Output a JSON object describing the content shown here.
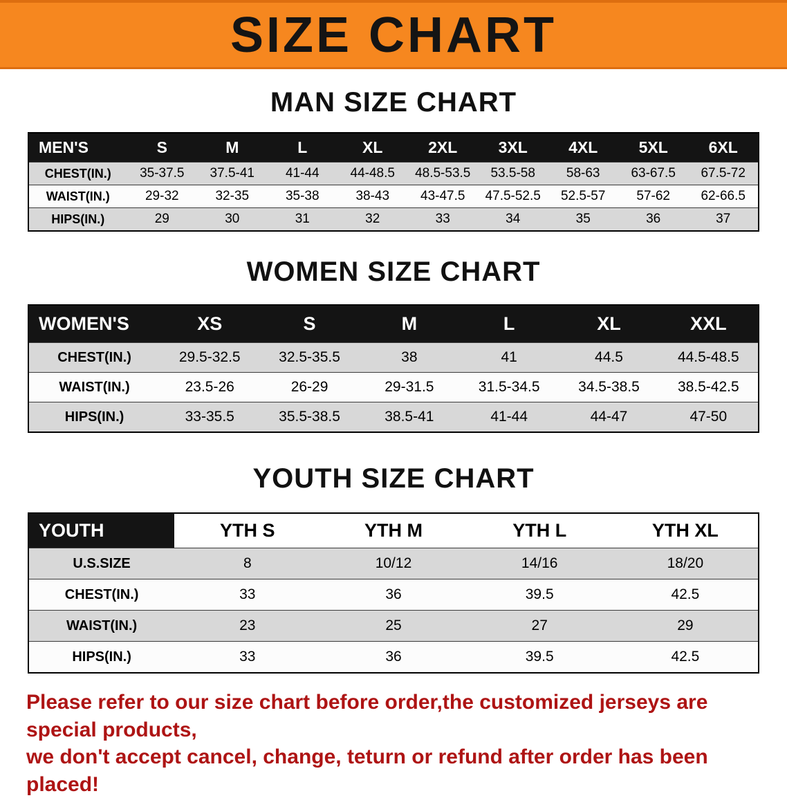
{
  "banner": {
    "title": "SIZE CHART",
    "bg_color": "#F6871F",
    "text_color": "#141414"
  },
  "sections": [
    {
      "heading": "MAN SIZE CHART",
      "table": {
        "header": [
          "MEN'S",
          "S",
          "M",
          "L",
          "XL",
          "2XL",
          "3XL",
          "4XL",
          "5XL",
          "6XL"
        ],
        "rows": [
          {
            "label": "CHEST(IN.)",
            "values": [
              "35-37.5",
              "37.5-41",
              "41-44",
              "44-48.5",
              "48.5-53.5",
              "53.5-58",
              "58-63",
              "63-67.5",
              "67.5-72"
            ]
          },
          {
            "label": "WAIST(IN.)",
            "values": [
              "29-32",
              "32-35",
              "35-38",
              "38-43",
              "43-47.5",
              "47.5-52.5",
              "52.5-57",
              "57-62",
              "62-66.5"
            ]
          },
          {
            "label": "HIPS(IN.)",
            "values": [
              "29",
              "30",
              "31",
              "32",
              "33",
              "34",
              "35",
              "36",
              "37"
            ]
          }
        ]
      }
    },
    {
      "heading": "WOMEN SIZE CHART",
      "table": {
        "header": [
          "WOMEN'S",
          "XS",
          "S",
          "M",
          "L",
          "XL",
          "XXL"
        ],
        "rows": [
          {
            "label": "CHEST(IN.)",
            "values": [
              "29.5-32.5",
              "32.5-35.5",
              "38",
              "41",
              "44.5",
              "44.5-48.5"
            ]
          },
          {
            "label": "WAIST(IN.)",
            "values": [
              "23.5-26",
              "26-29",
              "29-31.5",
              "31.5-34.5",
              "34.5-38.5",
              "38.5-42.5"
            ]
          },
          {
            "label": "HIPS(IN.)",
            "values": [
              "33-35.5",
              "35.5-38.5",
              "38.5-41",
              "41-44",
              "44-47",
              "47-50"
            ]
          }
        ]
      }
    },
    {
      "heading": "YOUTH SIZE CHART",
      "table": {
        "header": [
          "YOUTH",
          "YTH S",
          "YTH M",
          "YTH L",
          "YTH XL"
        ],
        "rows": [
          {
            "label": "U.S.SIZE",
            "values": [
              "8",
              "10/12",
              "14/16",
              "18/20"
            ]
          },
          {
            "label": "CHEST(IN.)",
            "values": [
              "33",
              "36",
              "39.5",
              "42.5"
            ]
          },
          {
            "label": "WAIST(IN.)",
            "values": [
              "23",
              "25",
              "27",
              "29"
            ]
          },
          {
            "label": "HIPS(IN.)",
            "values": [
              "33",
              "36",
              "39.5",
              "42.5"
            ]
          }
        ]
      }
    }
  ],
  "disclaimer": {
    "line1": "Please refer to our size chart before order,the customized jerseys are special products,",
    "line2": "we don't accept cancel, change, teturn or refund after order has been placed!",
    "color": "#AE1414"
  }
}
